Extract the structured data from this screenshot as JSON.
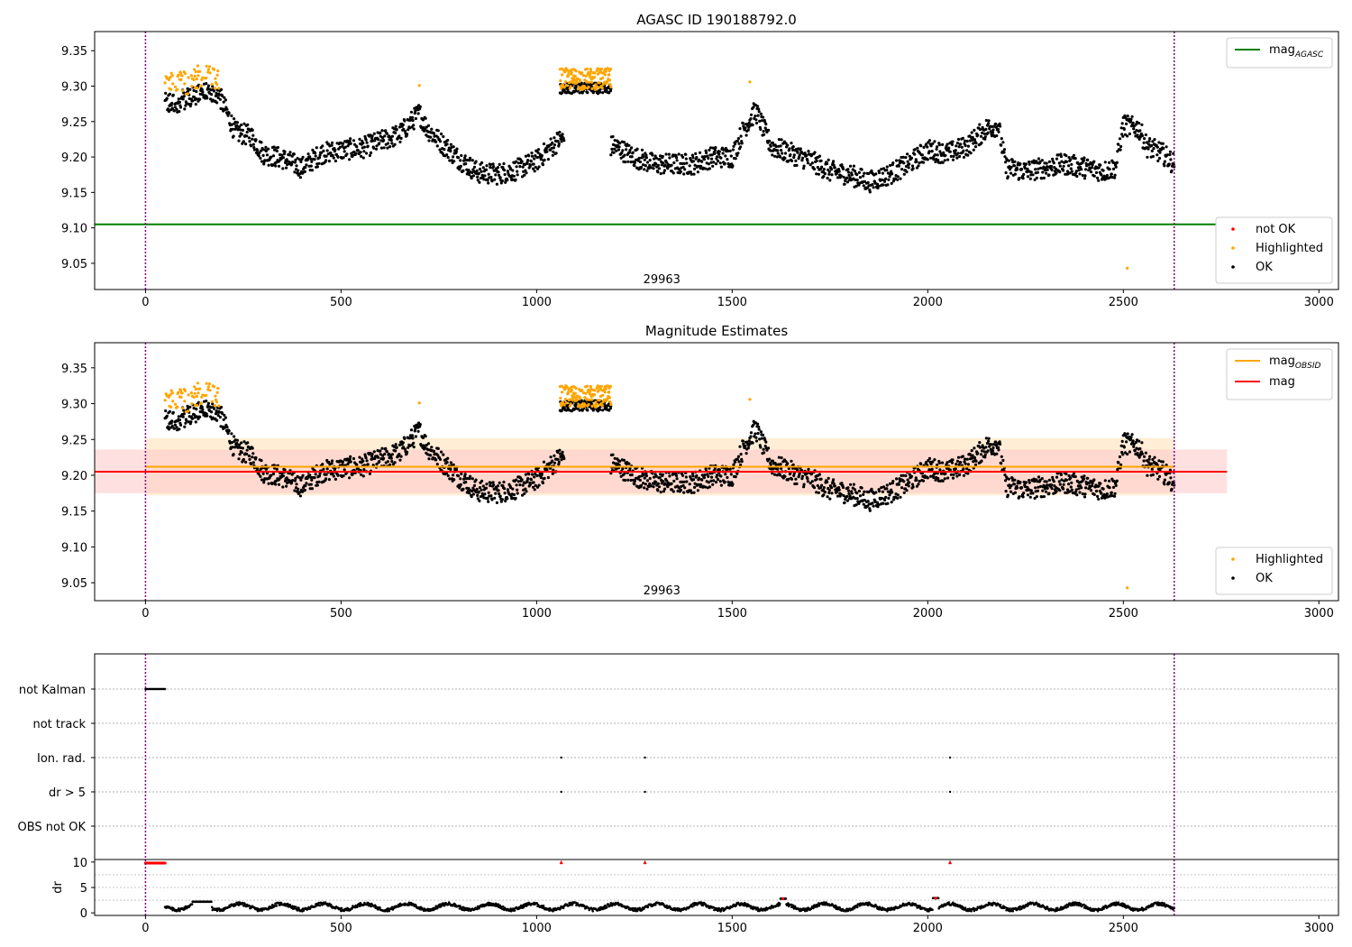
{
  "figure": {
    "title_top": "AGASC ID 190188792.0",
    "title_middle": "Magnitude Estimates",
    "obsid_label": "29963"
  },
  "colors": {
    "ok": "#000000",
    "highlighted": "#ffa500",
    "not_ok": "#ff0000",
    "mag_agasc": "#008000",
    "mag_obsid": "#ffa500",
    "mag": "#ff0000",
    "vline": "#800080",
    "band_mag": "#ffcccc",
    "band_obsid": "#ffe0b3"
  },
  "chart_data": [
    {
      "type": "scatter",
      "title": "AGASC ID 190188792.0",
      "xlim": [
        -130,
        3050
      ],
      "ylim": [
        9.013,
        9.377
      ],
      "xticks": [
        0,
        500,
        1000,
        1500,
        2000,
        2500,
        3000
      ],
      "yticks": [
        9.05,
        9.1,
        9.15,
        9.2,
        9.25,
        9.3,
        9.35
      ],
      "vlines": [
        0,
        2630
      ],
      "hlines": [
        {
          "name": "mag_agasc",
          "y": 9.105
        }
      ],
      "legend_top": [
        {
          "label": "mag",
          "sub": "AGASC"
        }
      ],
      "legend_bottom": [
        "not OK",
        "Highlighted",
        "OK"
      ],
      "annotation": {
        "text": "29963",
        "x": 1320,
        "y": 9.022
      },
      "grid": false
    },
    {
      "type": "scatter",
      "title": "Magnitude Estimates",
      "xlim": [
        -130,
        3050
      ],
      "ylim": [
        9.025,
        9.385
      ],
      "xticks": [
        0,
        500,
        1000,
        1500,
        2000,
        2500,
        3000
      ],
      "yticks": [
        9.05,
        9.1,
        9.15,
        9.2,
        9.25,
        9.3,
        9.35
      ],
      "vlines": [
        0,
        2630
      ],
      "hlines": [
        {
          "name": "mag_obsid",
          "y": 9.212,
          "band": [
            9.172,
            9.252
          ],
          "xrange": [
            0,
            2630
          ]
        },
        {
          "name": "mag",
          "y": 9.205,
          "band": [
            9.175,
            9.236
          ],
          "xrange": [
            -130,
            2765
          ]
        }
      ],
      "legend_top": [
        {
          "label": "mag",
          "sub": "OBSID"
        },
        {
          "label": "mag",
          "sub": ""
        }
      ],
      "legend_bottom": [
        "Highlighted",
        "OK"
      ],
      "annotation": {
        "text": "29963",
        "x": 1320,
        "y": 9.034
      },
      "grid": false
    },
    {
      "type": "scatter",
      "title": "",
      "xlim": [
        -130,
        3050
      ],
      "categories": [
        "not Kalman",
        "not track",
        "Ion. rad.",
        "dr > 5",
        "OBS not OK"
      ],
      "flag_points": {
        "not Kalman": [
          0,
          50
        ],
        "Ion. rad.": [
          1063,
          1277,
          2057
        ],
        "dr > 5": [
          1063,
          1277,
          2057
        ]
      },
      "grid": true
    },
    {
      "type": "line",
      "title": "",
      "xlim": [
        -130,
        3050
      ],
      "ylim": [
        -0.5,
        10.5
      ],
      "yticks": [
        0,
        5,
        10
      ],
      "ylabel": "dr",
      "xticks": [
        0,
        500,
        1000,
        1500,
        2000,
        2500,
        3000
      ],
      "dr_high_x": [
        0,
        50,
        1063,
        1277,
        2057
      ],
      "dr_high_y": 10,
      "grid": true
    }
  ]
}
